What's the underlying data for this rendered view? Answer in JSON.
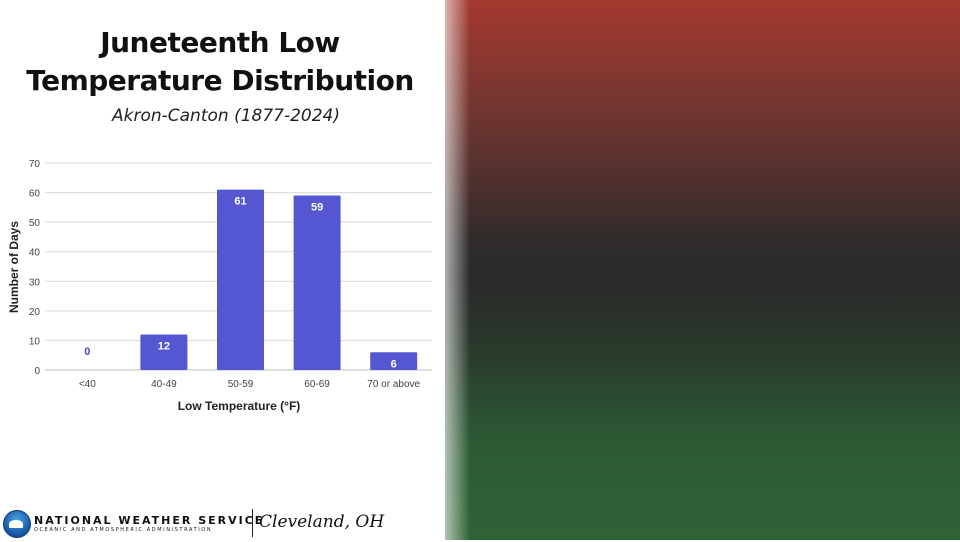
{
  "title_line1": "Juneteenth Low",
  "title_line2": "Temperature Distribution",
  "subtitle": "Akron-Canton (1877-2024)",
  "colors": {
    "bar": "#5557d0",
    "bar_label_inside": "#ffffff",
    "bar_label_zero": "#4a4cc8",
    "grid": "#d9d9d9",
    "flag_red": "#a4392f",
    "flag_black": "#2a2a2a",
    "flag_green": "#2f6336"
  },
  "chart_data": {
    "type": "bar",
    "categories": [
      "<40",
      "40-49",
      "50-59",
      "60-69",
      "70 or above"
    ],
    "values": [
      0,
      12,
      61,
      59,
      6
    ],
    "title": "Juneteenth Low Temperature Distribution",
    "subtitle": "Akron-Canton (1877-2024)",
    "xlabel": "Low Temperature (°F)",
    "ylabel": "Number of Days",
    "ylim": [
      0,
      70
    ],
    "yticks": [
      0,
      10,
      20,
      30,
      40,
      50,
      60,
      70
    ],
    "grid": true,
    "data_labels": true
  },
  "footer": {
    "agency": "NATIONAL WEATHER SERVICE",
    "agency_sub": "OCEANIC AND ATMOSPHERIC ADMINISTRATION",
    "office": "Cleveland, OH",
    "logo_icon": "noaa-logo-icon"
  }
}
